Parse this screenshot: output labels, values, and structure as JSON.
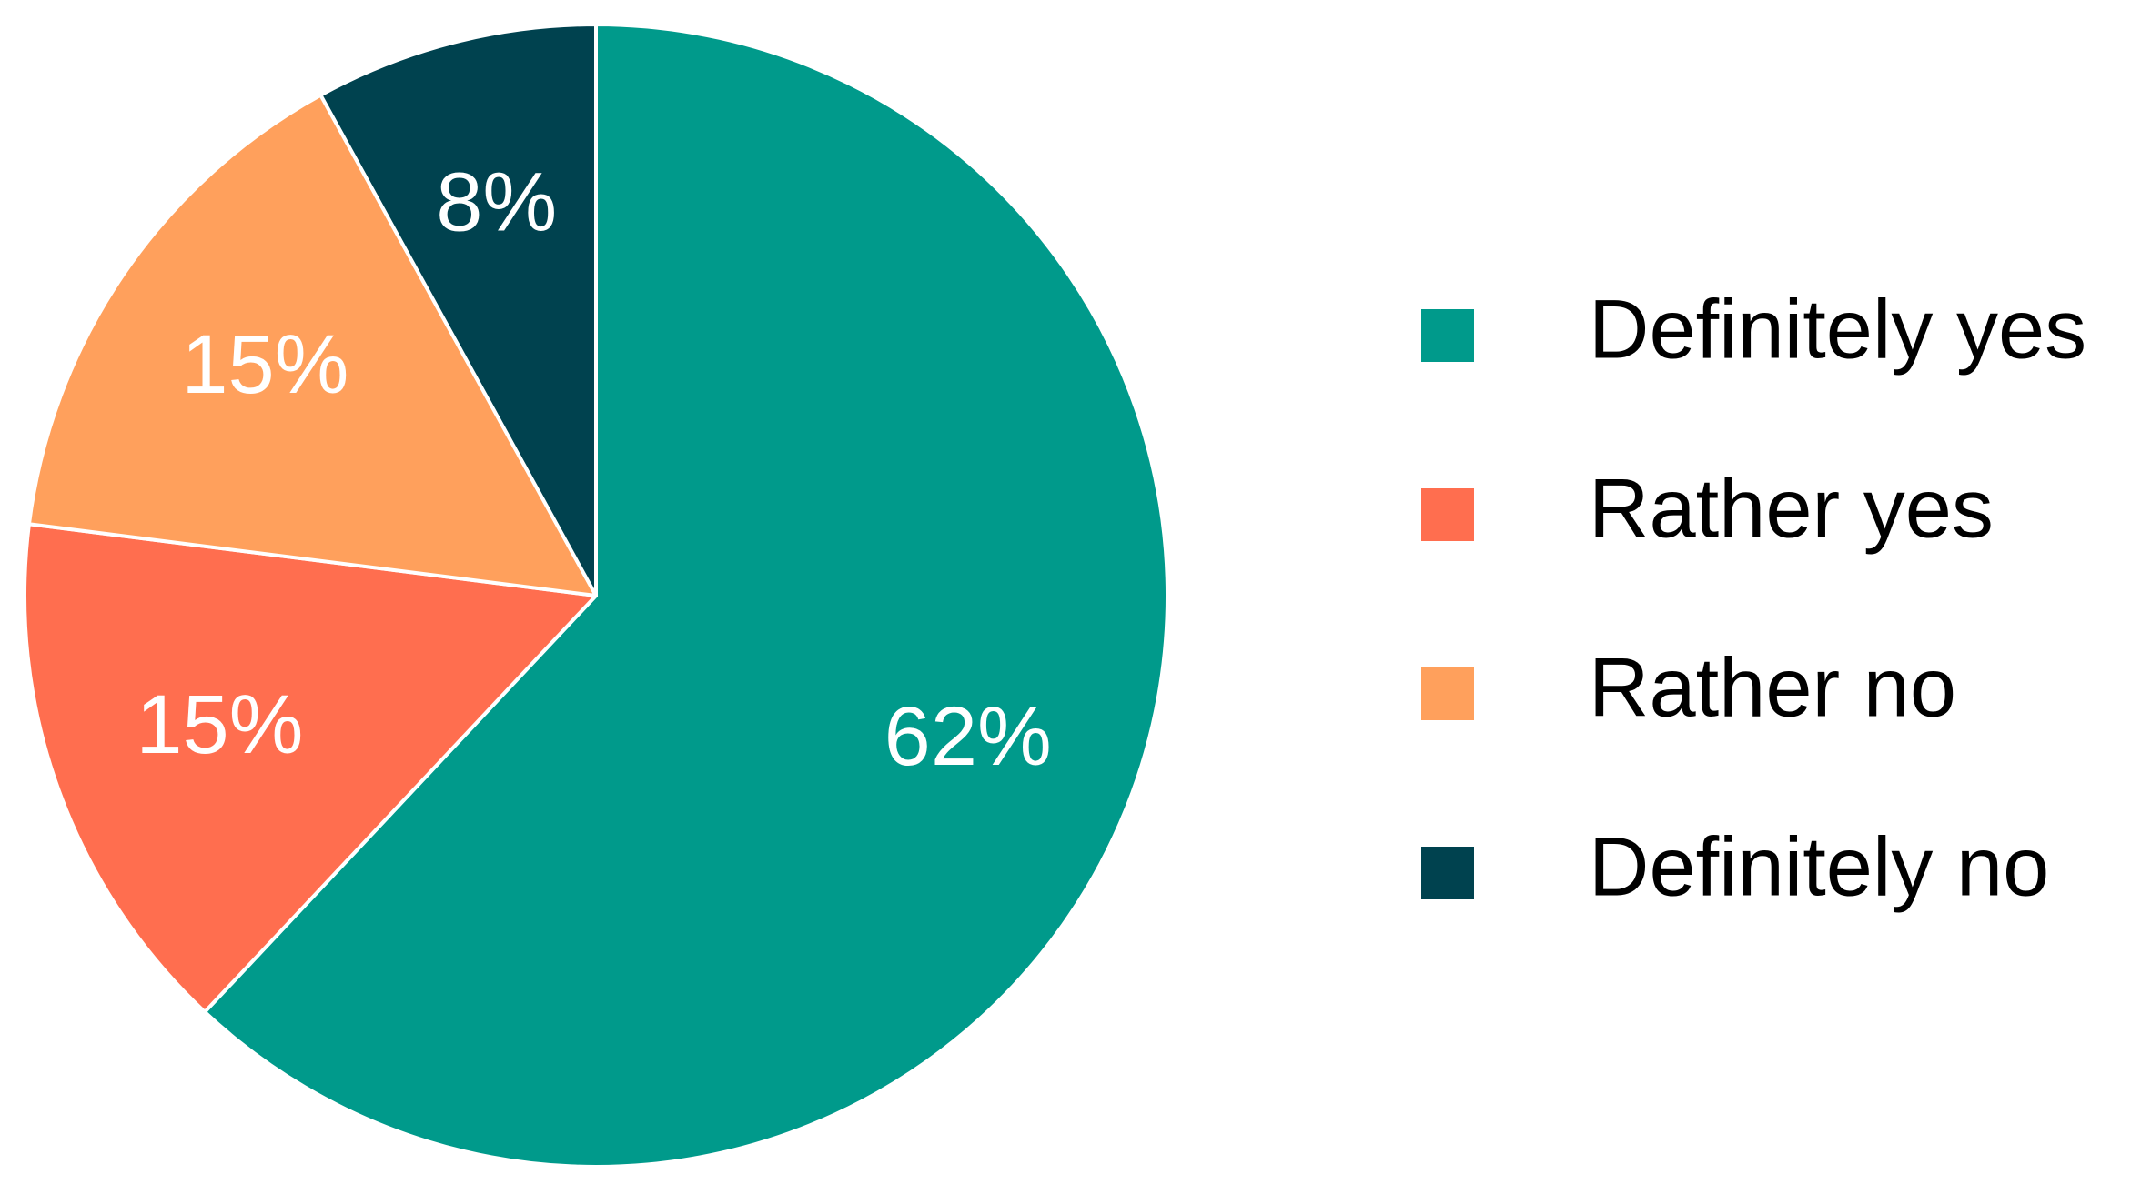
{
  "chart_data": {
    "type": "pie",
    "categories": [
      "Definitely yes",
      "Rather yes",
      "Rather no",
      "Definitely no"
    ],
    "values": [
      62,
      15,
      15,
      8
    ],
    "value_labels": [
      "62%",
      "15%",
      "15%",
      "8%"
    ],
    "colors": [
      "#009a8b",
      "#ff6e4f",
      "#ffa05c",
      "#00424f"
    ],
    "legend": "right"
  }
}
